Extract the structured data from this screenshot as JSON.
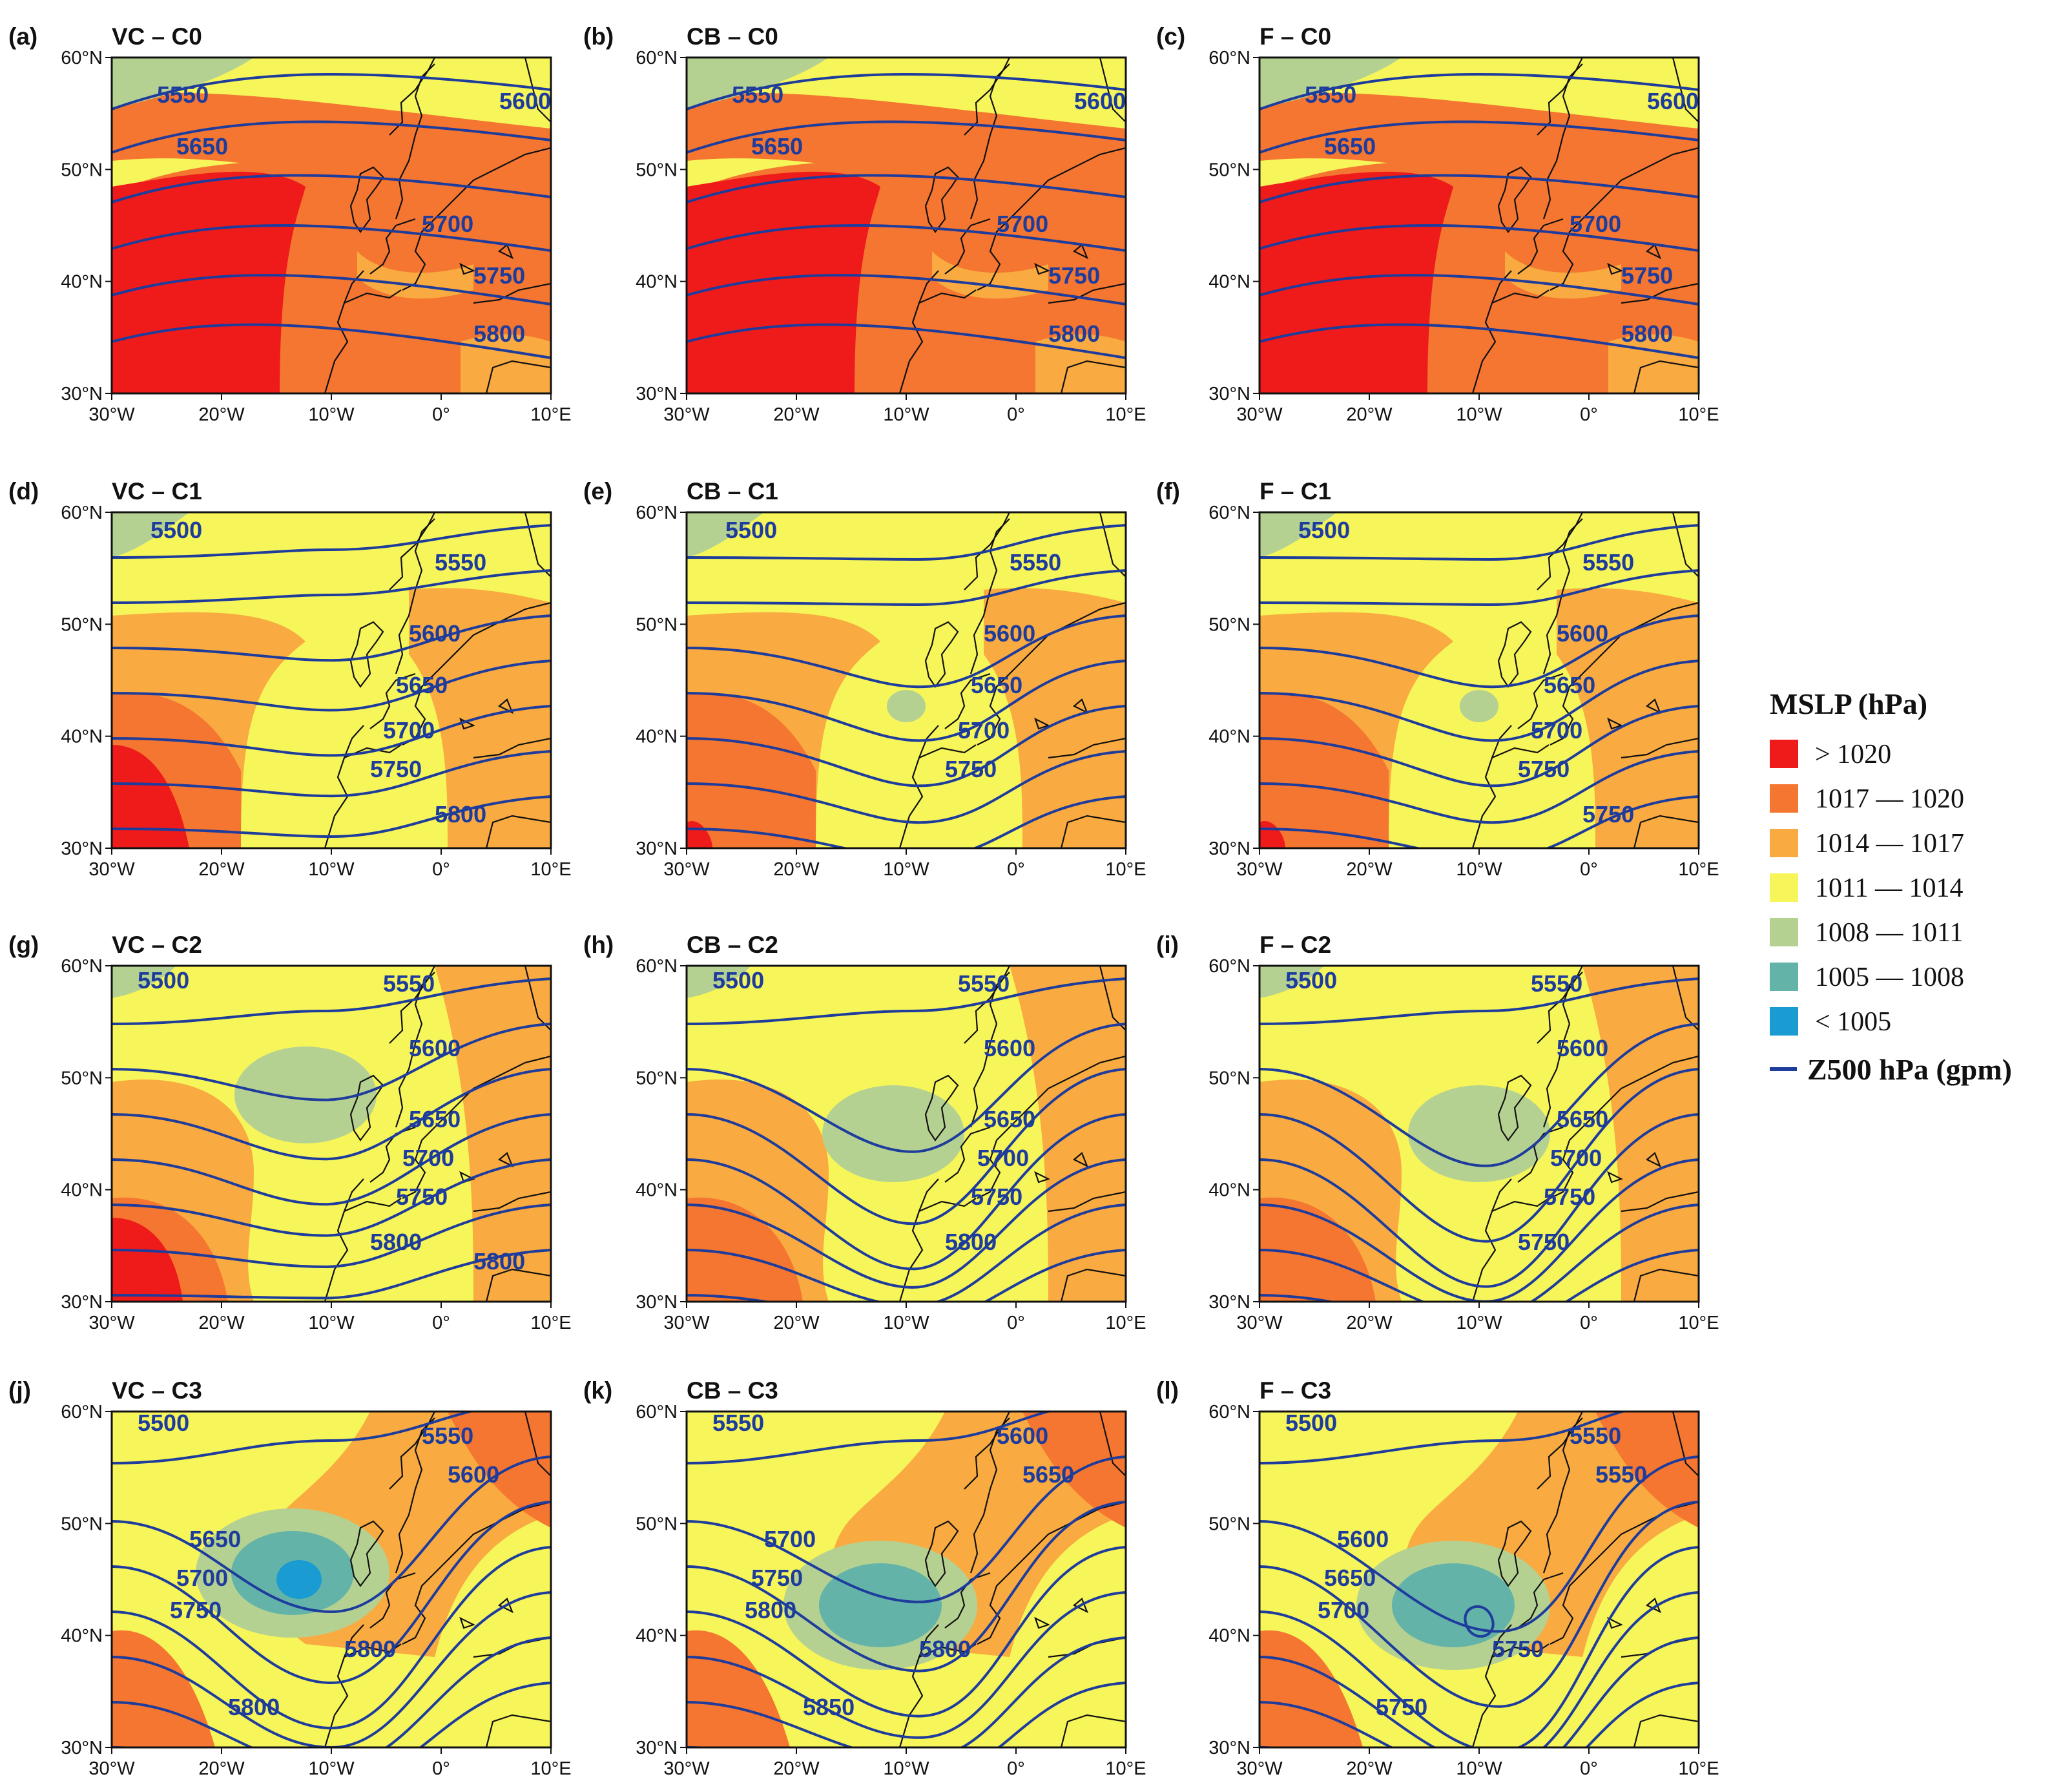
{
  "figure": {
    "legend": {
      "title": "MSLP (hPa)",
      "classes": [
        {
          "label": "> 1020",
          "color": "#ef1a1a"
        },
        {
          "label": "1017 — 1020",
          "color": "#f47630"
        },
        {
          "label": "1014 — 1017",
          "color": "#f9aa40"
        },
        {
          "label": "1011 — 1014",
          "color": "#f6f55a"
        },
        {
          "label": "1008 — 1011",
          "color": "#b5d192"
        },
        {
          "label": "1005 — 1008",
          "color": "#63b3a9"
        },
        {
          "label": "< 1005",
          "color": "#1a9bd2"
        }
      ],
      "line_label": "Z500 hPa (gpm)",
      "line_color": "#1e3c9c"
    },
    "axes": {
      "lon_ticks": [
        "30°W",
        "20°W",
        "10°W",
        "0°",
        "10°E"
      ],
      "lat_ticks": [
        "60°N",
        "50°N",
        "40°N",
        "30°N"
      ]
    }
  },
  "panels": [
    {
      "tag": "(a)",
      "title": "VC – C0",
      "labels": [
        "5550",
        "5600",
        "5650",
        "5700",
        "5750",
        "5800"
      ]
    },
    {
      "tag": "(b)",
      "title": "CB – C0",
      "labels": [
        "5550",
        "5600",
        "5650",
        "5700",
        "5750",
        "5800"
      ]
    },
    {
      "tag": "(c)",
      "title": "F – C0",
      "labels": [
        "5550",
        "5600",
        "5650",
        "5700",
        "5750",
        "5800"
      ]
    },
    {
      "tag": "(d)",
      "title": "VC – C1",
      "labels": [
        "5500",
        "5550",
        "5600",
        "5650",
        "5700",
        "5750",
        "5800"
      ]
    },
    {
      "tag": "(e)",
      "title": "CB – C1",
      "labels": [
        "5500",
        "5550",
        "5600",
        "5650",
        "5700",
        "5750"
      ]
    },
    {
      "tag": "(f)",
      "title": "F – C1",
      "labels": [
        "5500",
        "5550",
        "5600",
        "5650",
        "5700",
        "5750",
        "5750"
      ]
    },
    {
      "tag": "(g)",
      "title": "VC – C2",
      "labels": [
        "5500",
        "5550",
        "5600",
        "5650",
        "5700",
        "5750",
        "5800",
        "5800"
      ]
    },
    {
      "tag": "(h)",
      "title": "CB – C2",
      "labels": [
        "5500",
        "5550",
        "5600",
        "5650",
        "5700",
        "5750",
        "5800"
      ]
    },
    {
      "tag": "(i)",
      "title": "F – C2",
      "labels": [
        "5500",
        "5550",
        "5600",
        "5650",
        "5700",
        "5750",
        "5750"
      ]
    },
    {
      "tag": "(j)",
      "title": "VC – C3",
      "labels": [
        "5500",
        "5550",
        "5600",
        "5650",
        "5700",
        "5750",
        "5800",
        "5800"
      ]
    },
    {
      "tag": "(k)",
      "title": "CB – C3",
      "labels": [
        "5550",
        "5600",
        "5650",
        "5700",
        "5750",
        "5800",
        "5800",
        "5850"
      ]
    },
    {
      "tag": "(l)",
      "title": "F – C3",
      "labels": [
        "5500",
        "5550",
        "5550",
        "5600",
        "5650",
        "5700",
        "5750",
        "5750"
      ]
    }
  ]
}
